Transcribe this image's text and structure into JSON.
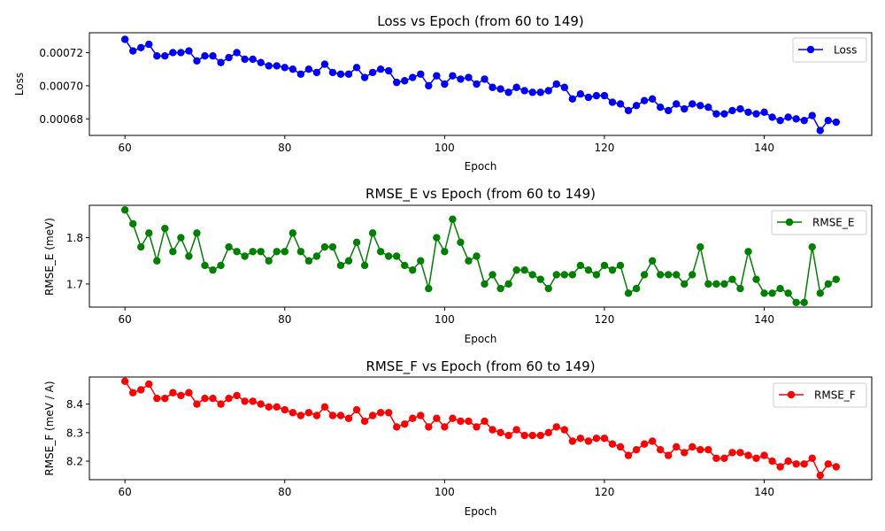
{
  "figure": {
    "background": "#ffffff"
  },
  "chart_data": [
    {
      "type": "line",
      "title": "Loss vs Epoch (from 60 to 149)",
      "xlabel": "Epoch",
      "ylabel": "Loss",
      "xlim": [
        55.55,
        153.45
      ],
      "ylim": [
        0.00067,
        0.000732
      ],
      "xticks": [
        60,
        80,
        100,
        120,
        140
      ],
      "yticks": [
        0.00068,
        0.0007,
        0.00072
      ],
      "ytick_labels": [
        "0.00068",
        "0.00070",
        "0.00072"
      ],
      "legend": {
        "position": "top-right"
      },
      "grid": false,
      "series": [
        {
          "name": "Loss",
          "color": "#0000ff",
          "marker": "circle",
          "x": [
            60,
            61,
            62,
            63,
            64,
            65,
            66,
            67,
            68,
            69,
            70,
            71,
            72,
            73,
            74,
            75,
            76,
            77,
            78,
            79,
            80,
            81,
            82,
            83,
            84,
            85,
            86,
            87,
            88,
            89,
            90,
            91,
            92,
            93,
            94,
            95,
            96,
            97,
            98,
            99,
            100,
            101,
            102,
            103,
            104,
            105,
            106,
            107,
            108,
            109,
            110,
            111,
            112,
            113,
            114,
            115,
            116,
            117,
            118,
            119,
            120,
            121,
            122,
            123,
            124,
            125,
            126,
            127,
            128,
            129,
            130,
            131,
            132,
            133,
            134,
            135,
            136,
            137,
            138,
            139,
            140,
            141,
            142,
            143,
            144,
            145,
            146,
            147,
            148,
            149
          ],
          "y": [
            0.000728,
            0.000721,
            0.000723,
            0.000725,
            0.000718,
            0.000718,
            0.00072,
            0.00072,
            0.000721,
            0.000715,
            0.000718,
            0.000718,
            0.000714,
            0.000717,
            0.00072,
            0.000716,
            0.000716,
            0.000714,
            0.000712,
            0.000712,
            0.000711,
            0.00071,
            0.000707,
            0.00071,
            0.000708,
            0.000713,
            0.000708,
            0.000707,
            0.000707,
            0.000711,
            0.000705,
            0.000708,
            0.00071,
            0.000709,
            0.000702,
            0.000703,
            0.000705,
            0.000707,
            0.0007,
            0.000706,
            0.000701,
            0.000706,
            0.000704,
            0.000705,
            0.000701,
            0.000704,
            0.000699,
            0.000698,
            0.000696,
            0.000699,
            0.000697,
            0.000696,
            0.000696,
            0.000697,
            0.000701,
            0.000699,
            0.000692,
            0.000695,
            0.000693,
            0.000694,
            0.000694,
            0.00069,
            0.000689,
            0.000685,
            0.000688,
            0.000691,
            0.000692,
            0.000687,
            0.000685,
            0.000689,
            0.000686,
            0.000689,
            0.000688,
            0.000687,
            0.000683,
            0.000683,
            0.000685,
            0.000686,
            0.000684,
            0.000683,
            0.000684,
            0.000681,
            0.000679,
            0.000681,
            0.00068,
            0.000679,
            0.000682,
            0.000673,
            0.000679,
            0.000678
          ]
        }
      ]
    },
    {
      "type": "line",
      "title": "RMSE_E vs Epoch (from 60 to 149)",
      "xlabel": "Epoch",
      "ylabel": "RMSE_E (meV)",
      "xlim": [
        55.55,
        153.45
      ],
      "ylim": [
        1.65,
        1.87
      ],
      "xticks": [
        60,
        80,
        100,
        120,
        140
      ],
      "yticks": [
        1.7,
        1.8
      ],
      "ytick_labels": [
        "1.7",
        "1.8"
      ],
      "legend": {
        "position": "top-right"
      },
      "grid": false,
      "series": [
        {
          "name": "RMSE_E",
          "color": "#008000",
          "marker": "circle",
          "x": [
            60,
            61,
            62,
            63,
            64,
            65,
            66,
            67,
            68,
            69,
            70,
            71,
            72,
            73,
            74,
            75,
            76,
            77,
            78,
            79,
            80,
            81,
            82,
            83,
            84,
            85,
            86,
            87,
            88,
            89,
            90,
            91,
            92,
            93,
            94,
            95,
            96,
            97,
            98,
            99,
            100,
            101,
            102,
            103,
            104,
            105,
            106,
            107,
            108,
            109,
            110,
            111,
            112,
            113,
            114,
            115,
            116,
            117,
            118,
            119,
            120,
            121,
            122,
            123,
            124,
            125,
            126,
            127,
            128,
            129,
            130,
            131,
            132,
            133,
            134,
            135,
            136,
            137,
            138,
            139,
            140,
            141,
            142,
            143,
            144,
            145,
            146,
            147,
            148,
            149
          ],
          "y": [
            1.86,
            1.83,
            1.78,
            1.81,
            1.75,
            1.82,
            1.77,
            1.8,
            1.76,
            1.81,
            1.74,
            1.73,
            1.74,
            1.78,
            1.77,
            1.76,
            1.77,
            1.77,
            1.75,
            1.77,
            1.77,
            1.81,
            1.77,
            1.75,
            1.76,
            1.78,
            1.78,
            1.74,
            1.75,
            1.79,
            1.74,
            1.81,
            1.77,
            1.76,
            1.76,
            1.74,
            1.73,
            1.75,
            1.69,
            1.8,
            1.77,
            1.84,
            1.79,
            1.75,
            1.76,
            1.7,
            1.72,
            1.69,
            1.7,
            1.73,
            1.73,
            1.72,
            1.71,
            1.69,
            1.72,
            1.72,
            1.72,
            1.74,
            1.73,
            1.72,
            1.74,
            1.73,
            1.74,
            1.68,
            1.69,
            1.72,
            1.75,
            1.72,
            1.72,
            1.72,
            1.7,
            1.72,
            1.78,
            1.7,
            1.7,
            1.7,
            1.71,
            1.69,
            1.77,
            1.71,
            1.68,
            1.68,
            1.69,
            1.68,
            1.66,
            1.66,
            1.78,
            1.68,
            1.7,
            1.71
          ]
        }
      ]
    },
    {
      "type": "line",
      "title": "RMSE_F vs Epoch (from 60 to 149)",
      "xlabel": "Epoch",
      "ylabel": "RMSE_F (meV / A)",
      "xlim": [
        55.55,
        153.45
      ],
      "ylim": [
        8.135,
        8.495
      ],
      "xticks": [
        60,
        80,
        100,
        120,
        140
      ],
      "yticks": [
        8.2,
        8.3,
        8.4
      ],
      "ytick_labels": [
        "8.2",
        "8.3",
        "8.4"
      ],
      "legend": {
        "position": "top-right"
      },
      "grid": false,
      "series": [
        {
          "name": "RMSE_F",
          "color": "#ff0000",
          "marker": "circle",
          "x": [
            60,
            61,
            62,
            63,
            64,
            65,
            66,
            67,
            68,
            69,
            70,
            71,
            72,
            73,
            74,
            75,
            76,
            77,
            78,
            79,
            80,
            81,
            82,
            83,
            84,
            85,
            86,
            87,
            88,
            89,
            90,
            91,
            92,
            93,
            94,
            95,
            96,
            97,
            98,
            99,
            100,
            101,
            102,
            103,
            104,
            105,
            106,
            107,
            108,
            109,
            110,
            111,
            112,
            113,
            114,
            115,
            116,
            117,
            118,
            119,
            120,
            121,
            122,
            123,
            124,
            125,
            126,
            127,
            128,
            129,
            130,
            131,
            132,
            133,
            134,
            135,
            136,
            137,
            138,
            139,
            140,
            141,
            142,
            143,
            144,
            145,
            146,
            147,
            148,
            149
          ],
          "y": [
            8.48,
            8.44,
            8.45,
            8.47,
            8.42,
            8.42,
            8.44,
            8.43,
            8.44,
            8.4,
            8.42,
            8.42,
            8.4,
            8.42,
            8.43,
            8.41,
            8.41,
            8.4,
            8.39,
            8.39,
            8.38,
            8.37,
            8.36,
            8.37,
            8.36,
            8.39,
            8.36,
            8.36,
            8.35,
            8.38,
            8.34,
            8.36,
            8.37,
            8.37,
            8.32,
            8.33,
            8.35,
            8.36,
            8.32,
            8.35,
            8.32,
            8.35,
            8.34,
            8.34,
            8.32,
            8.34,
            8.31,
            8.3,
            8.29,
            8.31,
            8.29,
            8.29,
            8.29,
            8.3,
            8.32,
            8.31,
            8.27,
            8.28,
            8.27,
            8.28,
            8.28,
            8.26,
            8.25,
            8.22,
            8.24,
            8.26,
            8.27,
            8.24,
            8.22,
            8.25,
            8.23,
            8.25,
            8.24,
            8.24,
            8.21,
            8.21,
            8.23,
            8.23,
            8.22,
            8.21,
            8.22,
            8.2,
            8.18,
            8.2,
            8.19,
            8.19,
            8.21,
            8.15,
            8.19,
            8.18
          ]
        }
      ]
    }
  ]
}
